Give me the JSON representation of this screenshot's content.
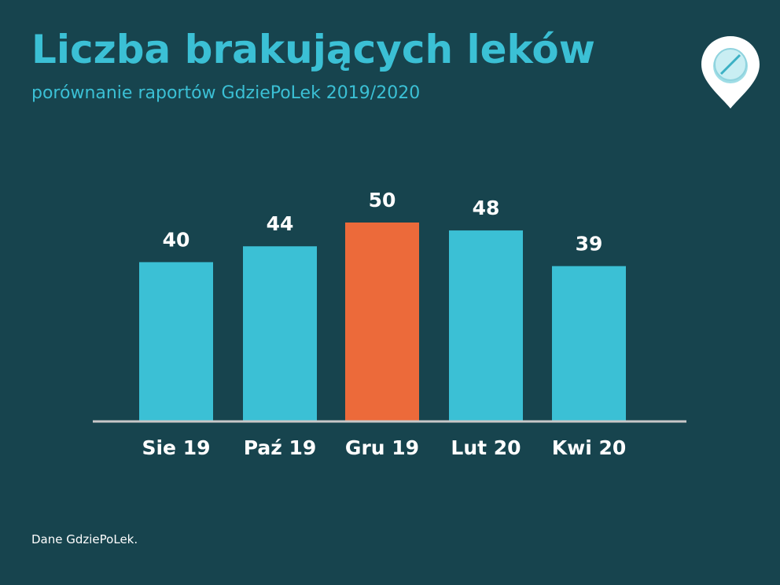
{
  "title": "Liczba brakujących leków",
  "subtitle": "porównanie raportów GdziePoLek 2019/2020",
  "source": "Dane GdziePoLek.",
  "logo": "pill-location-pin-icon",
  "colors": {
    "background": "#17444e",
    "bar": "#3bc0d5",
    "highlight": "#ec6a3a",
    "axis": "#c8c8c8"
  },
  "chart_data": {
    "type": "bar",
    "categories": [
      "Sie 19",
      "Paź 19",
      "Gru 19",
      "Lut 20",
      "Kwi 20"
    ],
    "values": [
      40,
      44,
      50,
      48,
      39
    ],
    "highlight_index": 2,
    "title": "Liczba brakujących leków",
    "subtitle": "porównanie raportów GdziePoLek 2019/2020",
    "xlabel": "",
    "ylabel": "",
    "ylim": [
      0,
      50
    ],
    "grid": false,
    "data_labels": true
  }
}
